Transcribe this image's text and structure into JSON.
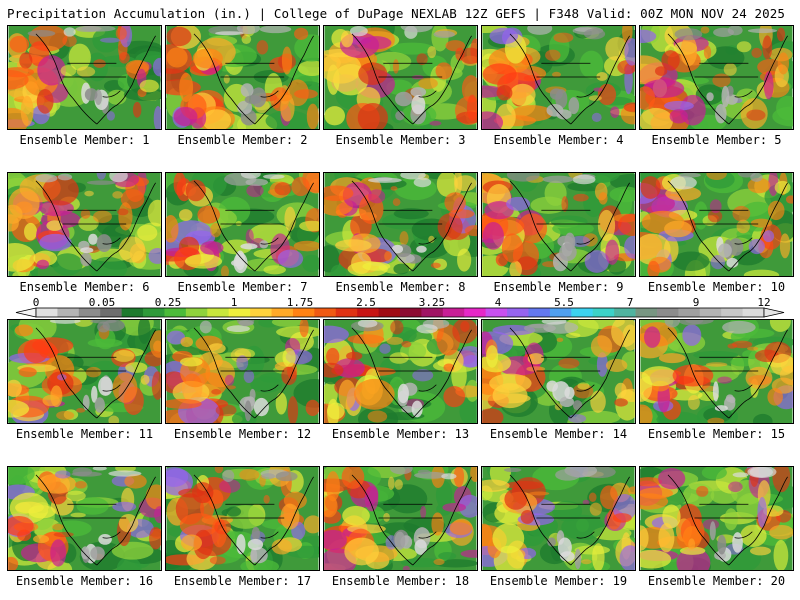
{
  "header": {
    "title": "Precipitation Accumulation (in.) | College of DuPage NEXLAB",
    "run_info": "12Z GEFS | F348 Valid: 00Z MON NOV 24 2025"
  },
  "panels": [
    {
      "label": "Ensemble Member: 1"
    },
    {
      "label": "Ensemble Member: 2"
    },
    {
      "label": "Ensemble Member: 3"
    },
    {
      "label": "Ensemble Member: 4"
    },
    {
      "label": "Ensemble Member: 5"
    },
    {
      "label": "Ensemble Member: 6"
    },
    {
      "label": "Ensemble Member: 7"
    },
    {
      "label": "Ensemble Member: 8"
    },
    {
      "label": "Ensemble Member: 9"
    },
    {
      "label": "Ensemble Member: 10"
    },
    {
      "label": "Ensemble Member: 11"
    },
    {
      "label": "Ensemble Member: 12"
    },
    {
      "label": "Ensemble Member: 13"
    },
    {
      "label": "Ensemble Member: 14"
    },
    {
      "label": "Ensemble Member: 15"
    },
    {
      "label": "Ensemble Member: 16"
    },
    {
      "label": "Ensemble Member: 17"
    },
    {
      "label": "Ensemble Member: 18"
    },
    {
      "label": "Ensemble Member: 19"
    },
    {
      "label": "Ensemble Member: 20"
    }
  ],
  "colorbar": {
    "tick_labels": [
      "0",
      "0.05",
      "0.25",
      "1",
      "1.75",
      "2.5",
      "3.25",
      "4",
      "5.5",
      "7",
      "9",
      "12"
    ],
    "colors": [
      "#e0e0e0",
      "#b4b4b4",
      "#8c8c8c",
      "#6e6e6e",
      "#1e7a2e",
      "#2f9a3a",
      "#4cbb3a",
      "#8fd23c",
      "#c8e63c",
      "#f0f03c",
      "#ffd23c",
      "#ffaa28",
      "#ff8214",
      "#f05a14",
      "#e03214",
      "#c81414",
      "#a00a14",
      "#8c0a32",
      "#a01464",
      "#c81e96",
      "#e628c8",
      "#c850f0",
      "#9664f0",
      "#6478f0",
      "#50a0f0",
      "#3cd2f0",
      "#3cd2c8",
      "#50b4a0",
      "#789682",
      "#8c8c8c",
      "#a0a0a0",
      "#b4b4b4",
      "#c8c8c8",
      "#dcdcdc"
    ]
  }
}
